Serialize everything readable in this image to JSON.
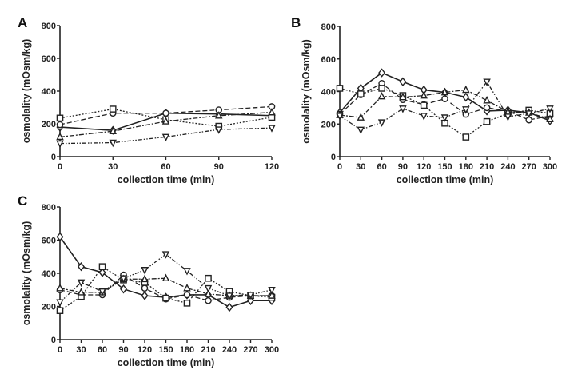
{
  "chart_data": [
    {
      "type": "line",
      "panel_label": "A",
      "xlabel": "collection time (min)",
      "ylabel": "osmolality (mOsm/kg)",
      "x": [
        0,
        30,
        60,
        90,
        120
      ],
      "xticks": [
        "0",
        "30",
        "60",
        "90",
        "120"
      ],
      "yticks": [
        "0",
        "200",
        "400",
        "600",
        "800"
      ],
      "xlim": [
        0,
        120
      ],
      "ylim": [
        0,
        800
      ],
      "grid": false,
      "series": [
        {
          "marker": "diamond",
          "line": "solid",
          "values": [
            180,
            160,
            265,
            260,
            250
          ]
        },
        {
          "marker": "circle",
          "line": "dashed",
          "values": [
            195,
            265,
            265,
            285,
            305
          ]
        },
        {
          "marker": "square",
          "line": "dotted",
          "values": [
            235,
            290,
            225,
            185,
            240
          ]
        },
        {
          "marker": "triangle-up",
          "line": "dash-dot",
          "values": [
            120,
            155,
            215,
            250,
            270
          ]
        },
        {
          "marker": "triangle-down",
          "line": "dash-dot-dot",
          "values": [
            80,
            85,
            120,
            165,
            175
          ]
        }
      ]
    },
    {
      "type": "line",
      "panel_label": "B",
      "xlabel": "collection time (min)",
      "ylabel": "osmolality (mOsm/kg)",
      "x": [
        0,
        30,
        60,
        90,
        120,
        150,
        180,
        210,
        240,
        270,
        300
      ],
      "xticks": [
        "0",
        "30",
        "60",
        "90",
        "120",
        "150",
        "180",
        "210",
        "240",
        "270",
        "300"
      ],
      "yticks": [
        "0",
        "200",
        "400",
        "600",
        "800"
      ],
      "xlim": [
        0,
        300
      ],
      "ylim": [
        0,
        800
      ],
      "grid": false,
      "series": [
        {
          "marker": "diamond",
          "line": "solid",
          "values": [
            270,
            420,
            515,
            460,
            410,
            395,
            365,
            280,
            285,
            270,
            220
          ]
        },
        {
          "marker": "circle",
          "line": "dashed",
          "values": [
            260,
            380,
            450,
            350,
            320,
            355,
            260,
            300,
            280,
            225,
            250
          ]
        },
        {
          "marker": "square",
          "line": "dotted",
          "values": [
            420,
            385,
            420,
            375,
            315,
            205,
            120,
            215,
            265,
            285,
            265
          ]
        },
        {
          "marker": "triangle-up",
          "line": "dash-dot",
          "values": [
            255,
            240,
            370,
            365,
            375,
            395,
            410,
            345,
            275,
            270,
            230
          ]
        },
        {
          "marker": "triangle-down",
          "line": "dash-dot-dot",
          "values": [
            250,
            165,
            210,
            295,
            250,
            240,
            290,
            460,
            245,
            265,
            295
          ]
        }
      ]
    },
    {
      "type": "line",
      "panel_label": "C",
      "xlabel": "collection time (min)",
      "ylabel": "osmolality (mOsm/kg)",
      "x": [
        0,
        30,
        60,
        90,
        120,
        150,
        180,
        210,
        240,
        270,
        300
      ],
      "xticks": [
        "0",
        "30",
        "60",
        "90",
        "120",
        "150",
        "180",
        "210",
        "240",
        "270",
        "300"
      ],
      "yticks": [
        "0",
        "200",
        "400",
        "600",
        "800"
      ],
      "xlim": [
        0,
        300
      ],
      "ylim": [
        0,
        800
      ],
      "grid": false,
      "series": [
        {
          "marker": "diamond",
          "line": "solid",
          "values": [
            620,
            440,
            405,
            305,
            265,
            255,
            270,
            270,
            195,
            235,
            235
          ]
        },
        {
          "marker": "circle",
          "line": "dashed",
          "values": [
            300,
            270,
            270,
            390,
            310,
            245,
            270,
            235,
            255,
            265,
            265
          ]
        },
        {
          "marker": "square",
          "line": "dotted",
          "values": [
            175,
            260,
            440,
            360,
            345,
            250,
            220,
            370,
            290,
            265,
            255
          ]
        },
        {
          "marker": "triangle-up",
          "line": "dash-dot",
          "values": [
            310,
            285,
            285,
            365,
            365,
            370,
            310,
            275,
            265,
            265,
            265
          ]
        },
        {
          "marker": "triangle-down",
          "line": "dash-dot-dot",
          "values": [
            225,
            345,
            290,
            370,
            420,
            515,
            415,
            310,
            265,
            270,
            300
          ]
        }
      ]
    }
  ]
}
